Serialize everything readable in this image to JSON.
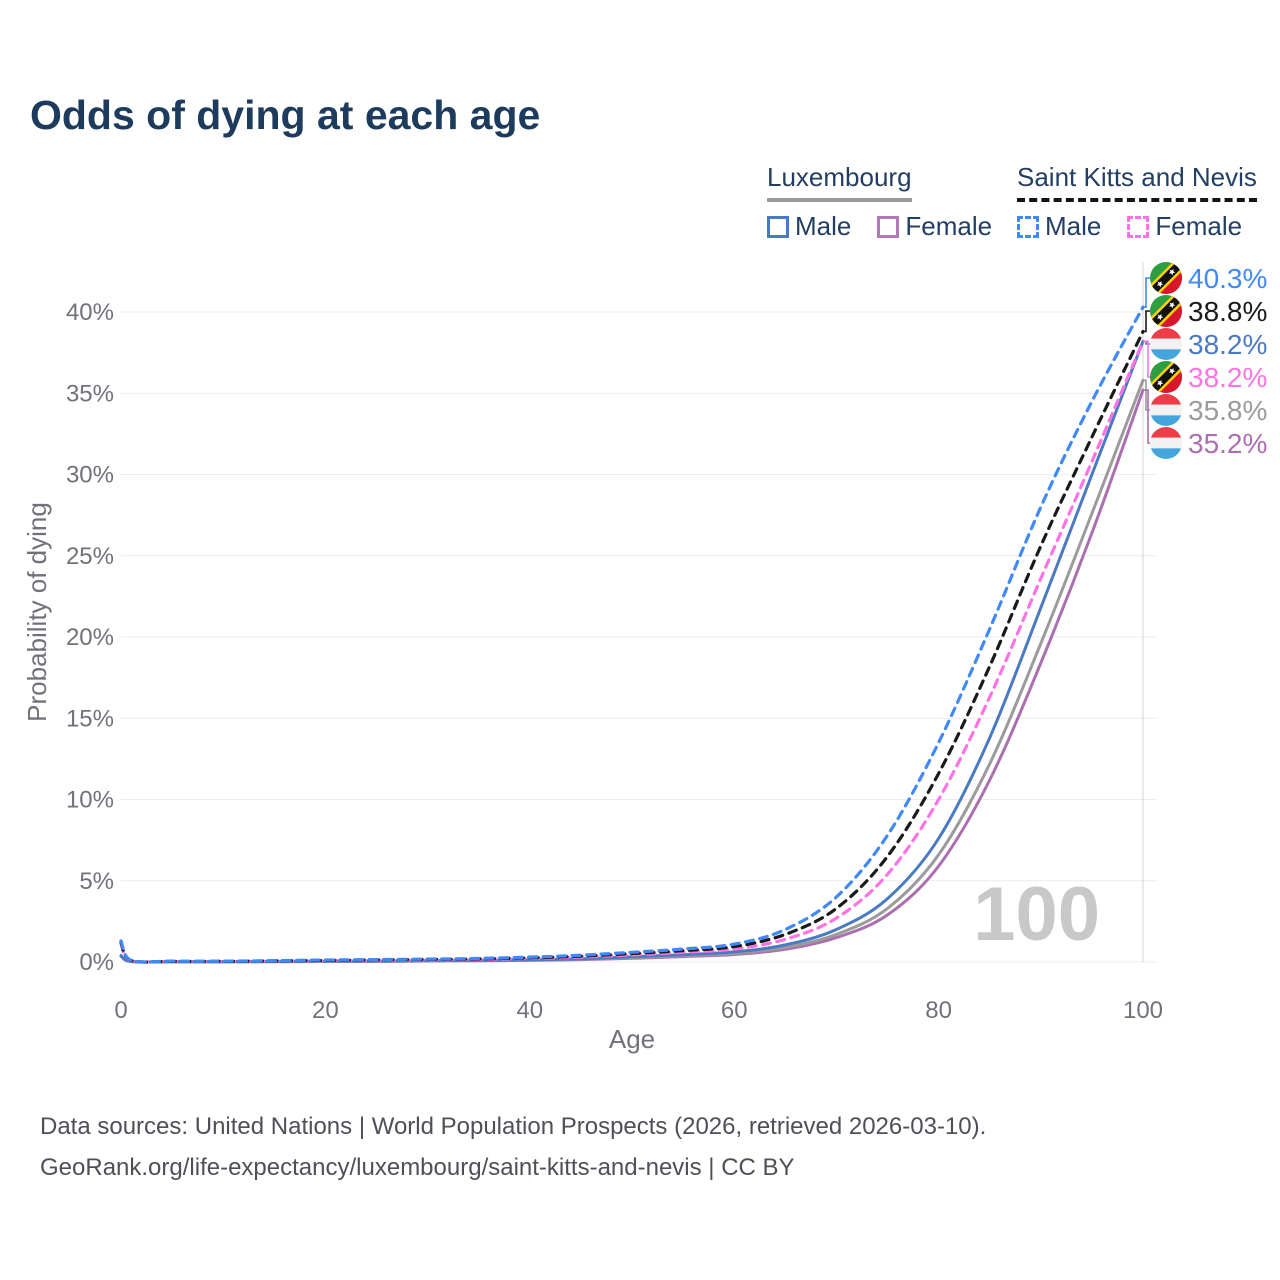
{
  "title": "Odds of dying at each age",
  "legend": {
    "groups": [
      {
        "label": "Luxembourg",
        "underline_style": "solid",
        "underline_color": "#9b9b9b",
        "items": [
          {
            "label": "Male",
            "color": "#4a7ac2",
            "dashed": false
          },
          {
            "label": "Female",
            "color": "#b279b8",
            "dashed": false
          }
        ]
      },
      {
        "label": "Saint Kitts and Nevis",
        "underline_style": "dashed",
        "underline_color": "#141414",
        "items": [
          {
            "label": "Male",
            "color": "#4189f6",
            "dashed": true
          },
          {
            "label": "Female",
            "color": "#fc74e4",
            "dashed": true
          }
        ]
      }
    ]
  },
  "chart_data": {
    "type": "line",
    "title": "Odds of dying at each age",
    "xlabel": "Age",
    "ylabel": "Probability of dying",
    "xlim": [
      0,
      100
    ],
    "ylim_pct": [
      0,
      43
    ],
    "grid": "horizontal",
    "legend_position": "top-right",
    "watermark": "100",
    "x_ticks": [
      0,
      20,
      40,
      60,
      80,
      100
    ],
    "y_ticks": [
      {
        "value": 0,
        "label": "0%"
      },
      {
        "value": 5,
        "label": "5%"
      },
      {
        "value": 10,
        "label": "10%"
      },
      {
        "value": 15,
        "label": "15%"
      },
      {
        "value": 20,
        "label": "20%"
      },
      {
        "value": 25,
        "label": "25%"
      },
      {
        "value": 30,
        "label": "30%"
      },
      {
        "value": 35,
        "label": "35%"
      },
      {
        "value": 40,
        "label": "40%"
      }
    ],
    "series": [
      {
        "name": "lux_female",
        "country": "Luxembourg",
        "sex": "Female",
        "color": "#ab6fb0",
        "dashed": false,
        "points": [
          [
            0,
            0.35
          ],
          [
            1,
            0.03
          ],
          [
            5,
            0.02
          ],
          [
            10,
            0.02
          ],
          [
            15,
            0.02
          ],
          [
            20,
            0.03
          ],
          [
            25,
            0.04
          ],
          [
            30,
            0.06
          ],
          [
            35,
            0.08
          ],
          [
            40,
            0.1
          ],
          [
            45,
            0.15
          ],
          [
            50,
            0.23
          ],
          [
            55,
            0.33
          ],
          [
            60,
            0.46
          ],
          [
            65,
            0.78
          ],
          [
            70,
            1.5
          ],
          [
            75,
            2.9
          ],
          [
            80,
            5.9
          ],
          [
            85,
            11.2
          ],
          [
            90,
            18.4
          ],
          [
            95,
            26.4
          ],
          [
            100,
            35.2
          ]
        ]
      },
      {
        "name": "lux_both",
        "country": "Luxembourg",
        "sex": "Both",
        "color": "#9b9b9b",
        "dashed": false,
        "points": [
          [
            0,
            0.38
          ],
          [
            1,
            0.03
          ],
          [
            5,
            0.02
          ],
          [
            10,
            0.02
          ],
          [
            15,
            0.03
          ],
          [
            20,
            0.04
          ],
          [
            25,
            0.05
          ],
          [
            30,
            0.07
          ],
          [
            35,
            0.09
          ],
          [
            40,
            0.12
          ],
          [
            45,
            0.17
          ],
          [
            50,
            0.27
          ],
          [
            55,
            0.38
          ],
          [
            60,
            0.53
          ],
          [
            65,
            0.9
          ],
          [
            70,
            1.7
          ],
          [
            75,
            3.3
          ],
          [
            80,
            6.6
          ],
          [
            85,
            12.2
          ],
          [
            90,
            19.6
          ],
          [
            95,
            27.6
          ],
          [
            100,
            35.8
          ]
        ]
      },
      {
        "name": "lux_male",
        "country": "Luxembourg",
        "sex": "Male",
        "color": "#4a7ac2",
        "dashed": false,
        "points": [
          [
            0,
            0.4
          ],
          [
            1,
            0.03
          ],
          [
            5,
            0.02
          ],
          [
            10,
            0.02
          ],
          [
            15,
            0.03
          ],
          [
            20,
            0.05
          ],
          [
            25,
            0.06
          ],
          [
            30,
            0.08
          ],
          [
            35,
            0.1
          ],
          [
            40,
            0.14
          ],
          [
            45,
            0.2
          ],
          [
            50,
            0.32
          ],
          [
            55,
            0.45
          ],
          [
            60,
            0.62
          ],
          [
            65,
            1.05
          ],
          [
            70,
            2.0
          ],
          [
            75,
            3.9
          ],
          [
            80,
            7.6
          ],
          [
            85,
            13.8
          ],
          [
            90,
            21.8
          ],
          [
            95,
            30.0
          ],
          [
            100,
            38.2
          ]
        ]
      },
      {
        "name": "skn_female",
        "country": "Saint Kitts and Nevis",
        "sex": "Female",
        "color": "#fc74e4",
        "dashed": true,
        "points": [
          [
            0,
            1.1
          ],
          [
            1,
            0.08
          ],
          [
            5,
            0.04
          ],
          [
            10,
            0.04
          ],
          [
            15,
            0.06
          ],
          [
            20,
            0.08
          ],
          [
            25,
            0.1
          ],
          [
            30,
            0.13
          ],
          [
            35,
            0.16
          ],
          [
            40,
            0.22
          ],
          [
            45,
            0.3
          ],
          [
            50,
            0.44
          ],
          [
            55,
            0.6
          ],
          [
            60,
            0.8
          ],
          [
            65,
            1.4
          ],
          [
            70,
            2.7
          ],
          [
            75,
            5.4
          ],
          [
            80,
            10.0
          ],
          [
            85,
            16.3
          ],
          [
            90,
            23.6
          ],
          [
            95,
            30.8
          ],
          [
            100,
            38.2
          ]
        ]
      },
      {
        "name": "skn_both",
        "country": "Saint Kitts and Nevis",
        "sex": "Both",
        "color": "#1a1a1a",
        "dashed": true,
        "points": [
          [
            0,
            1.2
          ],
          [
            1,
            0.09
          ],
          [
            5,
            0.04
          ],
          [
            10,
            0.04
          ],
          [
            15,
            0.07
          ],
          [
            20,
            0.1
          ],
          [
            25,
            0.13
          ],
          [
            30,
            0.16
          ],
          [
            35,
            0.19
          ],
          [
            40,
            0.26
          ],
          [
            45,
            0.36
          ],
          [
            50,
            0.52
          ],
          [
            55,
            0.7
          ],
          [
            60,
            0.95
          ],
          [
            65,
            1.7
          ],
          [
            70,
            3.3
          ],
          [
            75,
            6.5
          ],
          [
            80,
            11.6
          ],
          [
            85,
            18.2
          ],
          [
            90,
            25.6
          ],
          [
            95,
            32.3
          ],
          [
            100,
            38.8
          ]
        ]
      },
      {
        "name": "skn_male",
        "country": "Saint Kitts and Nevis",
        "sex": "Male",
        "color": "#4189f6",
        "dashed": true,
        "points": [
          [
            0,
            1.3
          ],
          [
            1,
            0.1
          ],
          [
            5,
            0.05
          ],
          [
            10,
            0.05
          ],
          [
            15,
            0.08
          ],
          [
            20,
            0.12
          ],
          [
            25,
            0.15
          ],
          [
            30,
            0.18
          ],
          [
            35,
            0.22
          ],
          [
            40,
            0.3
          ],
          [
            45,
            0.42
          ],
          [
            50,
            0.6
          ],
          [
            55,
            0.8
          ],
          [
            60,
            1.1
          ],
          [
            65,
            2.0
          ],
          [
            70,
            4.0
          ],
          [
            75,
            7.8
          ],
          [
            80,
            13.5
          ],
          [
            85,
            20.5
          ],
          [
            90,
            28.0
          ],
          [
            95,
            34.5
          ],
          [
            100,
            40.3
          ]
        ]
      }
    ],
    "annotations": [
      {
        "series": "skn_male",
        "label": "40.3%",
        "flag": "skn"
      },
      {
        "series": "skn_both",
        "label": "38.8%",
        "flag": "skn"
      },
      {
        "series": "lux_male",
        "label": "38.2%",
        "flag": "lux"
      },
      {
        "series": "skn_female",
        "label": "38.2%",
        "flag": "skn"
      },
      {
        "series": "lux_both",
        "label": "35.8%",
        "flag": "lux"
      },
      {
        "series": "lux_female",
        "label": "35.2%",
        "flag": "lux"
      }
    ],
    "flag_colors": {
      "lux": {
        "red": "#ee3d49",
        "white": "#f2f2f3",
        "blue": "#44a4dc"
      },
      "skn": {
        "green": "#2e9e43",
        "red": "#d8172c",
        "yellow": "#ffd200",
        "black": "#111111",
        "star": "#ffffff"
      }
    }
  },
  "footer": {
    "line1": "Data sources: United Nations | World Population Prospects (2026, retrieved 2026-03-10).",
    "line2": "GeoRank.org/life-expectancy/luxembourg/saint-kitts-and-nevis | CC BY"
  }
}
